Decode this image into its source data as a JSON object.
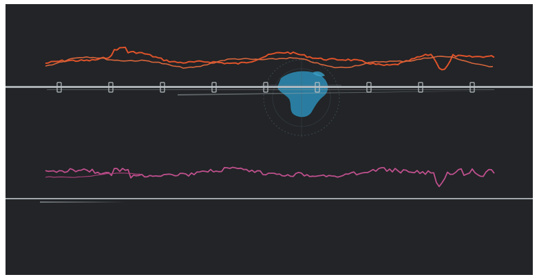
{
  "colors": {
    "background": "#222427",
    "upper_wave_a": "#e0532a",
    "upper_wave_b": "#d9663c",
    "lower_wave": "#c0508e",
    "rail": "#b9c0c4",
    "globe": "#2b8db6",
    "globe_ring": "#4d5a62",
    "hud_text": "#8e6a66"
  },
  "icons": {
    "globe": "globe-icon",
    "rail_marker": "rail-marker-icon"
  },
  "upper_rail": {
    "marker_count": 9
  },
  "hud": {
    "lines": [
      "",
      "",
      "",
      "",
      "",
      "",
      ""
    ]
  }
}
